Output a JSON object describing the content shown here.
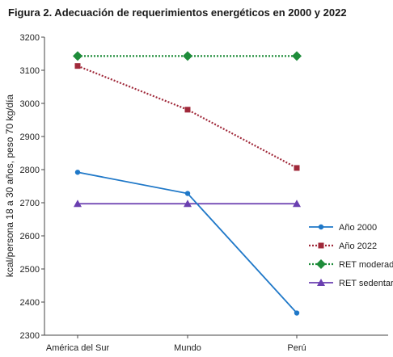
{
  "figure": {
    "title": "Figura 2. Adecuación de requerimientos energéticos en 2000 y 2022"
  },
  "chart_data": {
    "type": "line",
    "title": "Figura 2. Adecuación de requerimientos energéticos en 2000 y 2022",
    "xlabel": "",
    "ylabel": "kcal/persona 18 a 30 años, peso 70 kg/día",
    "categories": [
      "América del Sur",
      "Mundo",
      "Perú"
    ],
    "ylim": [
      2300,
      3200
    ],
    "yticks": [
      2300,
      2400,
      2500,
      2600,
      2700,
      2800,
      2900,
      3000,
      3100,
      3200
    ],
    "grid": false,
    "legend_position": "right",
    "series": [
      {
        "name": "Año 2000",
        "values": [
          2792,
          2728,
          2367
        ],
        "color": "#1f78c8",
        "line": "solid",
        "marker": "circle"
      },
      {
        "name": "Año 2022",
        "values": [
          3113,
          2981,
          2805
        ],
        "color": "#a0293a",
        "line": "dotted",
        "marker": "square"
      },
      {
        "name": "RET moderado",
        "values": [
          3143,
          3143,
          3143
        ],
        "color": "#1e8c3a",
        "line": "dotted",
        "marker": "diamond"
      },
      {
        "name": "RET sedentario",
        "values": [
          2697,
          2697,
          2697
        ],
        "color": "#6a3fb0",
        "line": "solid",
        "marker": "triangle"
      }
    ]
  }
}
